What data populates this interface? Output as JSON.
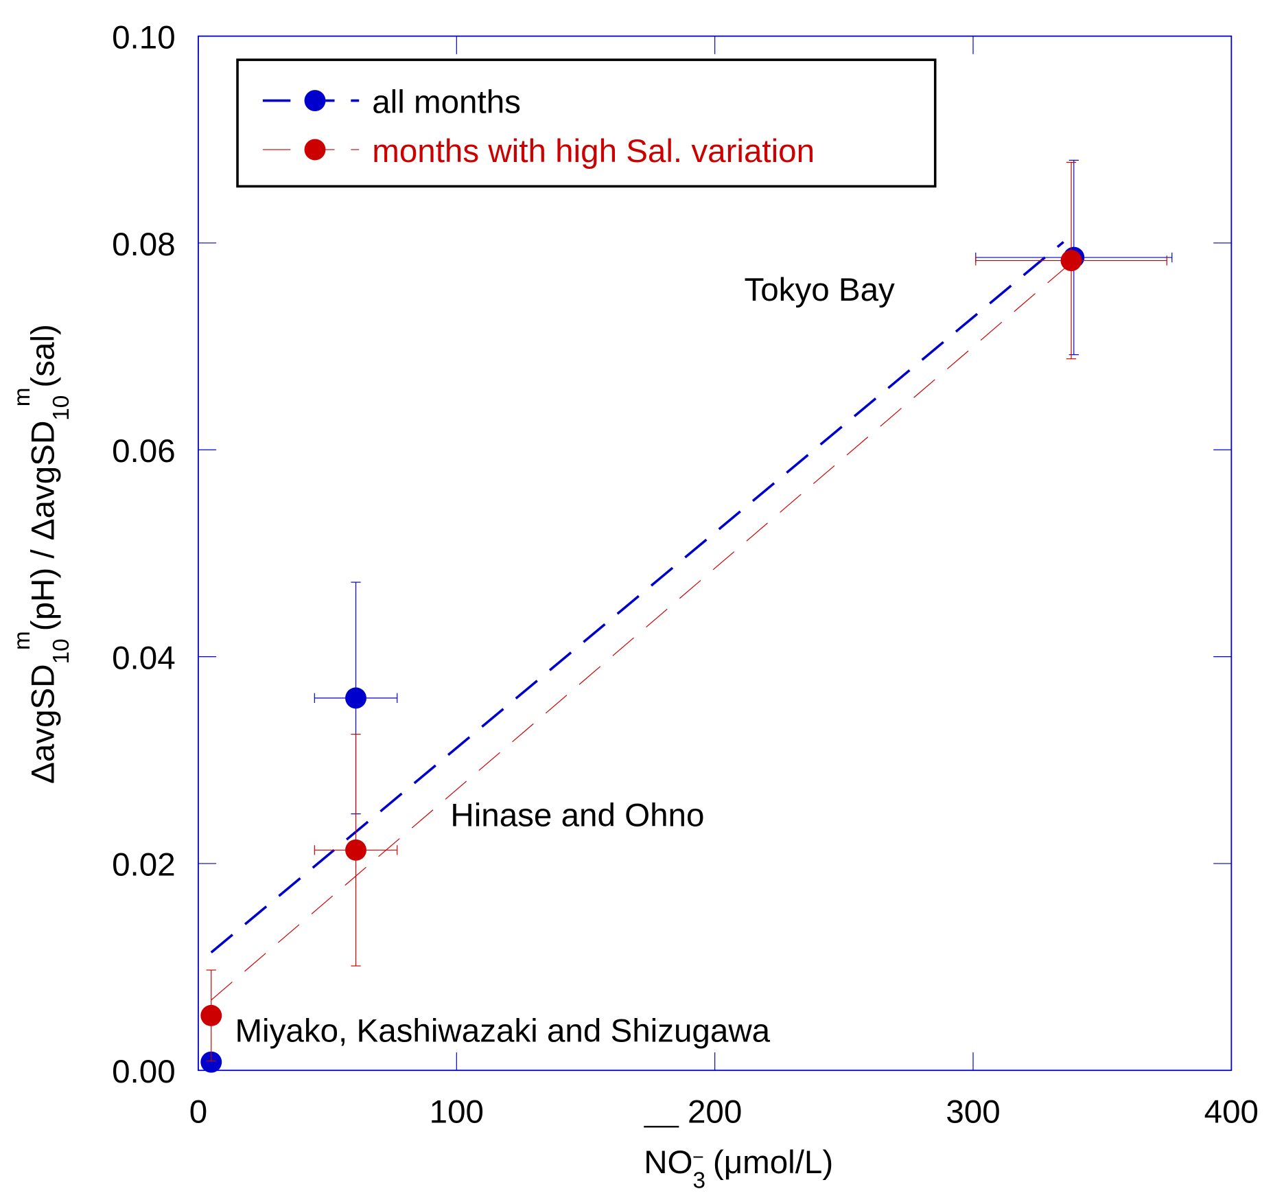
{
  "chart_data": {
    "type": "scatter",
    "title": "",
    "xlabel": {
      "main": "NO",
      "sub": "3",
      "sup": "−",
      "units": " (μmol/L)"
    },
    "ylabel": {
      "p1": "ΔavgSD",
      "sub1": "10",
      "sup1": "m",
      "p2": "(pH) / ΔavgSD",
      "sub2": "10",
      "sup2": "m",
      "p3": "(sal)"
    },
    "xlim": [
      0,
      400
    ],
    "ylim": [
      0,
      0.1
    ],
    "xticks": [
      "0",
      "100",
      "200",
      "300",
      "400"
    ],
    "xtick_values": [
      0,
      100,
      200,
      300,
      400
    ],
    "yticks": [
      "0.00",
      "0.02",
      "0.04",
      "0.06",
      "0.08",
      "0.10"
    ],
    "ytick_values": [
      0,
      0.02,
      0.04,
      0.06,
      0.08,
      0.1
    ],
    "grid": false,
    "legend_placement": "top-left",
    "series": [
      {
        "name": "all months",
        "color": "#0000cc",
        "points": [
          {
            "x": 5,
            "y": 0.0008,
            "xerr": 0,
            "yerr": 0
          },
          {
            "x": 61,
            "y": 0.036,
            "xerr": 16,
            "yerr": 0.0112
          },
          {
            "x": 339,
            "y": 0.0786,
            "xerr": 38,
            "yerr": 0.0094
          }
        ],
        "fit": {
          "x": [
            5,
            335
          ],
          "y": [
            0.0114,
            0.0801
          ]
        }
      },
      {
        "name": "months with high Sal. variation",
        "color": "#cc0000",
        "points": [
          {
            "x": 5,
            "y": 0.0053,
            "xerr": 0,
            "yerr": 0.0044
          },
          {
            "x": 61,
            "y": 0.0213,
            "xerr": 16,
            "yerr": 0.0112
          },
          {
            "x": 338,
            "y": 0.0783,
            "xerr": 37,
            "yerr": 0.0095
          }
        ],
        "fit": {
          "x": [
            5,
            338
          ],
          "y": [
            0.0068,
            0.0781
          ]
        }
      }
    ],
    "annotations": [
      {
        "text": "Tokyo Bay"
      },
      {
        "text": "Hinase and Ohno"
      },
      {
        "text": "Miyako, Kashiwazaki and Shizugawa"
      }
    ]
  }
}
